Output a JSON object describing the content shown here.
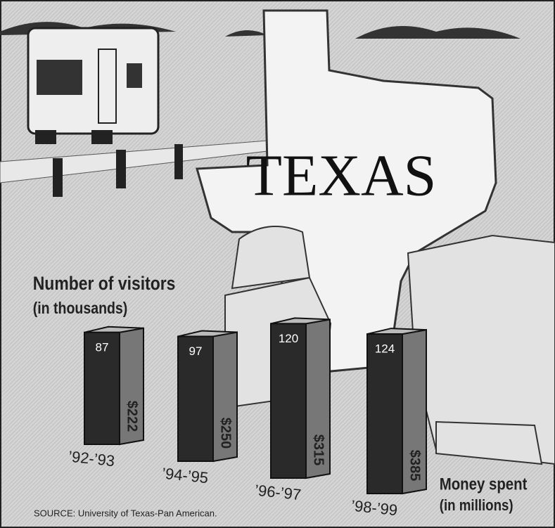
{
  "chart_data": {
    "type": "bar",
    "title": "TEXAS",
    "y_label": "Number of visitors",
    "y_label_unit": "(in thousands)",
    "money_label": "Money spent",
    "money_label_unit": "(in millions)",
    "source": "SOURCE: University of Texas-Pan American.",
    "categories": [
      "’92-’93",
      "’94-’95",
      "’96-’97",
      "’98-’99"
    ],
    "series": [
      {
        "name": "Number of visitors",
        "color": "#2a2a2a",
        "values": [
          87,
          97,
          120,
          124
        ]
      },
      {
        "name": "Money spent",
        "color": "#777777",
        "values": [
          222,
          250,
          315,
          385
        ],
        "value_labels": [
          "$222",
          "$250",
          "$315",
          "$385"
        ]
      }
    ]
  }
}
